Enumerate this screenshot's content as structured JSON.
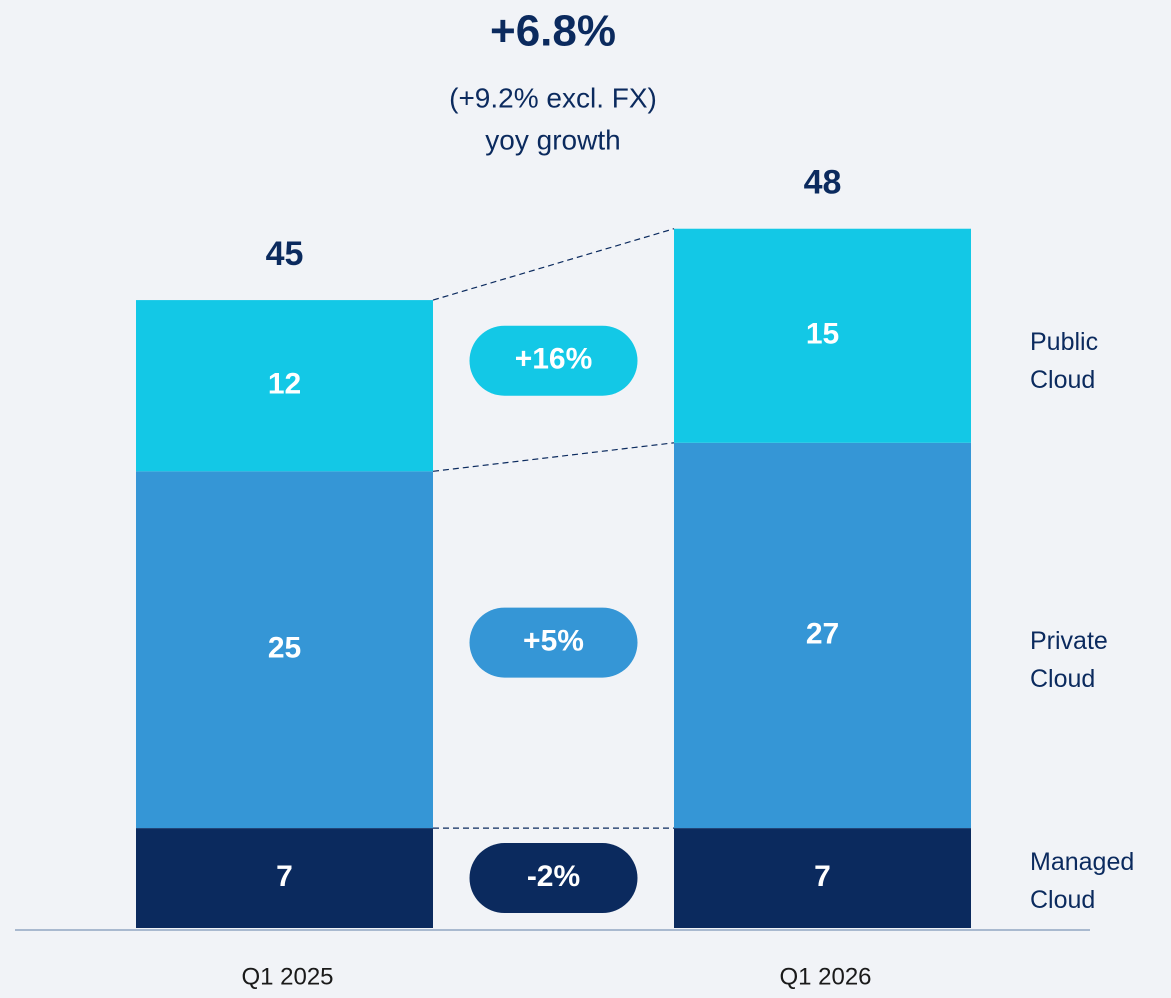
{
  "chart_data": {
    "type": "stacked_bar",
    "title": "+6.8%",
    "subtitle": "(+9.2% excl. FX)",
    "subtitle2": "yoy growth",
    "categories": [
      "Q1 2025",
      "Q1 2026"
    ],
    "totals": [
      45,
      48
    ],
    "series": [
      {
        "name": "Managed Cloud",
        "color": "#0b2a5e",
        "values": [
          7,
          7
        ],
        "growth": "-2%"
      },
      {
        "name": "Private Cloud",
        "color": "#3596d6",
        "values": [
          25,
          27
        ],
        "growth": "+5%"
      },
      {
        "name": "Public Cloud",
        "color": "#13c8e6",
        "values": [
          12,
          15
        ],
        "growth": "+16%"
      }
    ]
  }
}
